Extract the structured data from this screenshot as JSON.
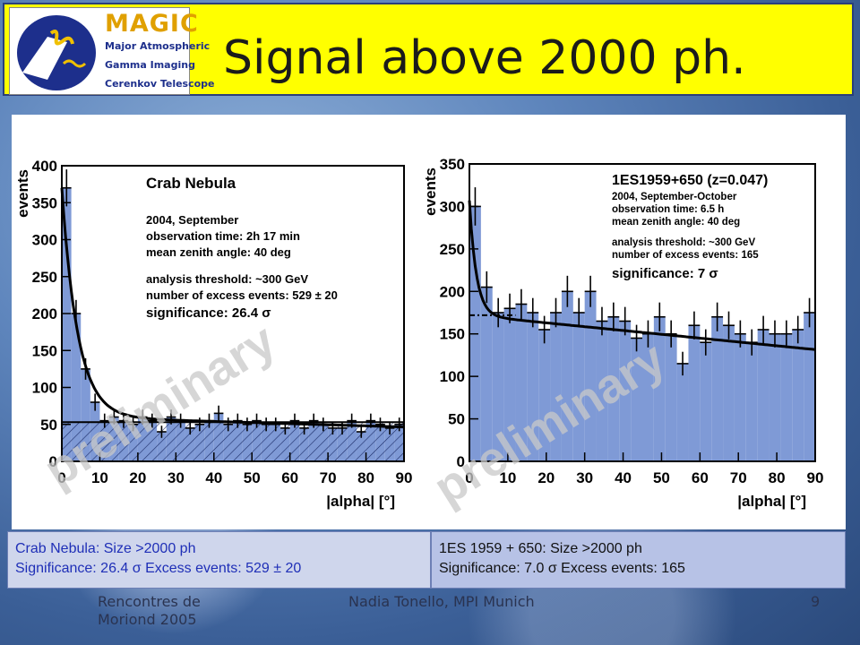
{
  "logo": {
    "word": "MAGIC",
    "lines": [
      "Major Atmospheric",
      "Gamma Imaging",
      "Cerenkov Telescope"
    ]
  },
  "title": "Signal above 2000 ph.",
  "chart_data": [
    {
      "type": "bar",
      "title": "Crab Nebula",
      "xlabel": "|alpha|  [°]",
      "ylabel": "events",
      "xlim": [
        0,
        90
      ],
      "ylim": [
        0,
        400
      ],
      "xticks": [
        0,
        10,
        20,
        30,
        40,
        50,
        60,
        70,
        80,
        90
      ],
      "yticks": [
        0,
        50,
        100,
        150,
        200,
        250,
        300,
        350,
        400
      ],
      "bin_width": 2.5,
      "x": [
        1.25,
        3.75,
        6.25,
        8.75,
        11.25,
        13.75,
        16.25,
        18.75,
        21.25,
        23.75,
        26.25,
        28.75,
        31.25,
        33.75,
        36.25,
        38.75,
        41.25,
        43.75,
        46.25,
        48.75,
        51.25,
        53.75,
        56.25,
        58.75,
        61.25,
        63.75,
        66.25,
        68.75,
        71.25,
        73.75,
        76.25,
        78.75,
        81.25,
        83.75,
        86.25,
        88.75
      ],
      "series": [
        {
          "values": [
            370,
            200,
            125,
            80,
            55,
            60,
            55,
            50,
            60,
            55,
            40,
            60,
            55,
            45,
            50,
            55,
            65,
            50,
            55,
            50,
            55,
            50,
            50,
            45,
            55,
            45,
            55,
            50,
            45,
            45,
            55,
            40,
            55,
            50,
            45,
            50
          ]
        }
      ],
      "background_level": 53,
      "annotations": [
        "2004, September",
        "observation time: 2h 17 min",
        "mean zenith angle: 40 deg",
        "analysis threshold: ~300 GeV",
        "number of excess events: 529 ± 20",
        "significance: 26.4 σ"
      ],
      "watermark": "preliminary"
    },
    {
      "type": "bar",
      "title": "1ES1959+650  (z=0.047)",
      "xlabel": "|alpha|  [°]",
      "ylabel": "events",
      "xlim": [
        0,
        90
      ],
      "ylim": [
        0,
        350
      ],
      "xticks": [
        0,
        10,
        20,
        30,
        40,
        50,
        60,
        70,
        80,
        90
      ],
      "yticks": [
        0,
        50,
        100,
        150,
        200,
        250,
        300,
        350
      ],
      "bin_width": 3,
      "x": [
        1.5,
        4.5,
        7.5,
        10.5,
        13.5,
        16.5,
        19.5,
        22.5,
        25.5,
        28.5,
        31.5,
        34.5,
        37.5,
        40.5,
        43.5,
        46.5,
        49.5,
        52.5,
        55.5,
        58.5,
        61.5,
        64.5,
        67.5,
        70.5,
        73.5,
        76.5,
        79.5,
        82.5,
        85.5,
        88.5
      ],
      "series": [
        {
          "values": [
            300,
            205,
            175,
            180,
            185,
            175,
            155,
            175,
            200,
            175,
            200,
            165,
            170,
            165,
            145,
            150,
            170,
            150,
            115,
            160,
            140,
            170,
            160,
            150,
            140,
            155,
            150,
            150,
            155,
            175
          ]
        }
      ],
      "background_level": 170,
      "annotations": [
        "2004, September-October",
        "observation time: 6.5 h",
        "mean zenith angle: 40 deg",
        "analysis threshold: ~300 GeV",
        "number of excess events: 165",
        "significance: 7 σ"
      ],
      "watermark": "preliminary"
    }
  ],
  "captions": {
    "left": [
      "Crab Nebula: Size >2000 ph",
      "Significance: 26.4 σ  Excess events: 529 ± 20"
    ],
    "right": [
      "1ES 1959 + 650: Size >2000 ph",
      "Significance: 7.0 σ  Excess events: 165"
    ]
  },
  "footer": {
    "left_line1": "Rencontres de",
    "left_line2": "Moriond 2005",
    "center": "Nadia Tonello, MPI Munich",
    "page": "9"
  },
  "colors": {
    "header": "#ffff00",
    "bars": "#7f9ad6",
    "caption_left_text": "#1f2fb7"
  }
}
